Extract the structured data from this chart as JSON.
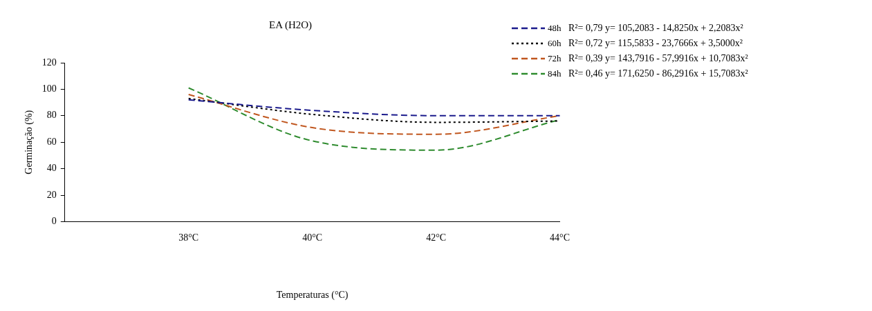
{
  "chart_data": {
    "type": "line",
    "title": "EA (H2O)",
    "xlabel": "Temperaturas (°C)",
    "ylabel": "Germinação (%)",
    "categories": [
      null,
      "38°C",
      "40°C",
      "42°C",
      "44°C"
    ],
    "ylim": [
      0,
      120
    ],
    "yticks": [
      0,
      20,
      40,
      60,
      80,
      100,
      120
    ],
    "grid": false,
    "legend": "top right",
    "marker": "none",
    "series": [
      {
        "name": "48h",
        "color": "#1a1a8c",
        "line_style": "dashed",
        "values": [
          null,
          92,
          84,
          80,
          80
        ]
      },
      {
        "name": "60h",
        "color": "#000000",
        "line_style": "dotted",
        "values": [
          null,
          93,
          81,
          75,
          76
        ]
      },
      {
        "name": "72h",
        "color": "#c0561e",
        "line_style": "dashed",
        "values": [
          null,
          96,
          71,
          66,
          80
        ]
      },
      {
        "name": "84h",
        "color": "#2e8b2e",
        "line_style": "dashed",
        "values": [
          null,
          101,
          61,
          54,
          77
        ]
      }
    ],
    "annotations": [
      "R²= 0,79 y= 105,2083 - 14,8250x + 2,2083x²",
      "R²= 0,72 y= 115,5833 - 23,7666x + 3,5000x²",
      "R²= 0,39 y= 143,7916 - 57,9916x + 10,7083x²",
      "R²= 0,46 y= 171,6250 - 86,2916x + 15,7083x²"
    ]
  }
}
